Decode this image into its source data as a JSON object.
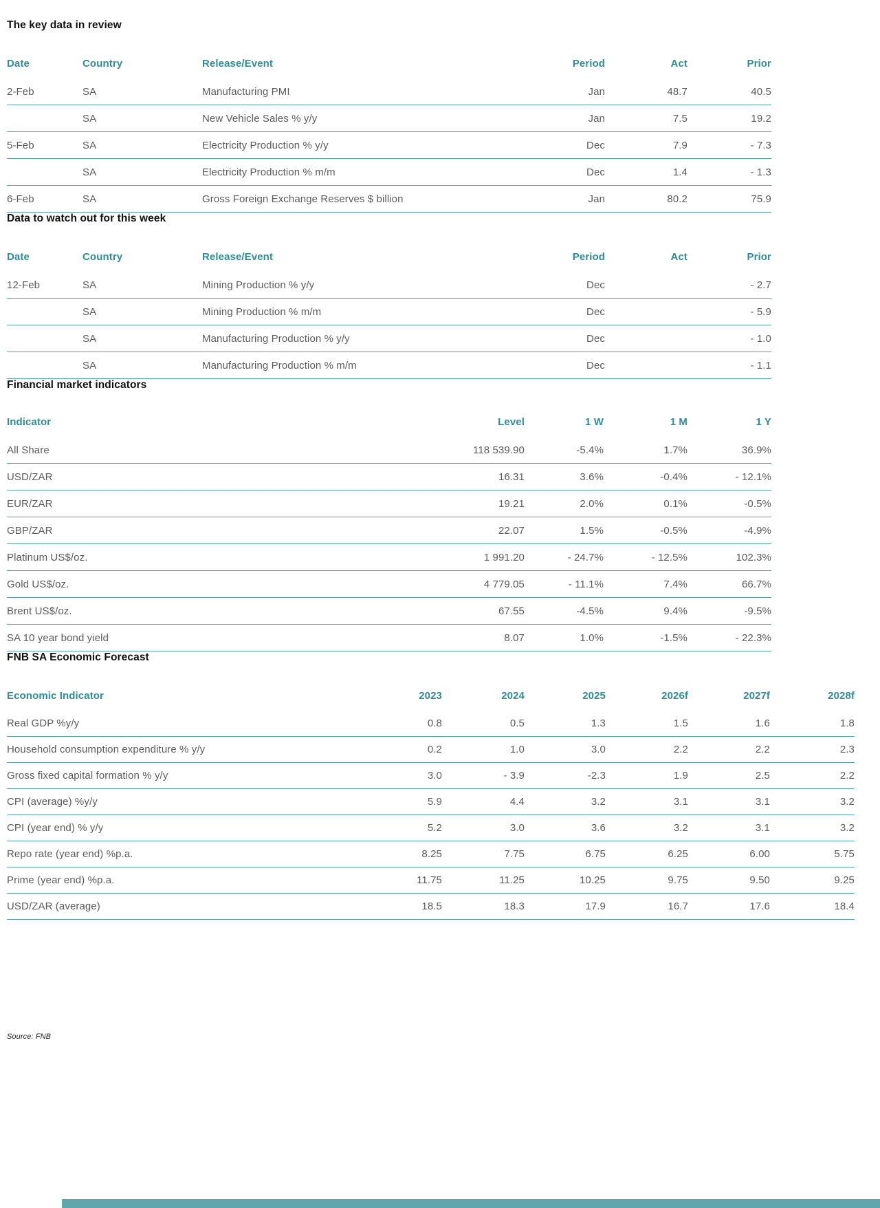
{
  "colors": {
    "accent_header_text": "#2e8d95",
    "row_separator": "#53a0a7",
    "body_text": "#5a5b5d",
    "title_text": "#111111",
    "bottom_bar": "#5fa7ad"
  },
  "footer": {
    "source_note": "Source: FNB"
  },
  "sections": [
    {
      "title": "The key data in review",
      "headers": [
        "Date",
        "Country",
        "Release/Event",
        "Period",
        "Act",
        "Prior"
      ],
      "rows": [
        [
          "2-Feb",
          "SA",
          "Manufacturing PMI",
          "Jan",
          "48.7",
          "40.5"
        ],
        [
          "",
          "SA",
          "New Vehicle Sales % y/y",
          "Jan",
          "7.5",
          "19.2"
        ],
        [
          "5-Feb",
          "SA",
          "Electricity Production % y/y",
          "Dec",
          "7.9",
          "- 7.3"
        ],
        [
          "",
          "SA",
          "Electricity Production % m/m",
          "Dec",
          "1.4",
          "- 1.3"
        ],
        [
          "6-Feb",
          "SA",
          "Gross Foreign Exchange Reserves $ billion",
          "Jan",
          "80.2",
          "75.9"
        ]
      ]
    },
    {
      "title": "Data to watch out for this week",
      "headers": [
        "Date",
        "Country",
        "Release/Event",
        "Period",
        "Act",
        "Prior"
      ],
      "rows": [
        [
          "12-Feb",
          "SA",
          "Mining Production % y/y",
          "Dec",
          "",
          "- 2.7"
        ],
        [
          "",
          "SA",
          "Mining Production % m/m",
          "Dec",
          "",
          "- 5.9"
        ],
        [
          "",
          "SA",
          "Manufacturing Production % y/y",
          "Dec",
          "",
          "- 1.0"
        ],
        [
          "",
          "SA",
          "Manufacturing Production % m/m",
          "Dec",
          "",
          "- 1.1"
        ]
      ]
    },
    {
      "title": "Financial market indicators",
      "headers": [
        "Indicator",
        "Level",
        "1 W",
        "1 M",
        "1 Y"
      ],
      "rows": [
        [
          "All Share",
          "118 539.90",
          "-5.4%",
          "1.7%",
          "36.9%"
        ],
        [
          "USD/ZAR",
          "16.31",
          "3.6%",
          "-0.4%",
          "- 12.1%"
        ],
        [
          "EUR/ZAR",
          "19.21",
          "2.0%",
          "0.1%",
          "-0.5%"
        ],
        [
          "GBP/ZAR",
          "22.07",
          "1.5%",
          "-0.5%",
          "-4.9%"
        ],
        [
          "Platinum US$/oz.",
          "1 991.20",
          "- 24.7%",
          "- 12.5%",
          "102.3%"
        ],
        [
          "Gold US$/oz.",
          "4 779.05",
          "- 11.1%",
          "7.4%",
          "66.7%"
        ],
        [
          "Brent US$/oz.",
          "67.55",
          "-4.5%",
          "9.4%",
          "-9.5%"
        ],
        [
          "SA 10 year bond yield",
          "8.07",
          "1.0%",
          "-1.5%",
          "- 22.3%"
        ]
      ]
    },
    {
      "title": "FNB SA Economic Forecast",
      "headers": [
        "Economic Indicator",
        "2023",
        "2024",
        "2025",
        "2026f",
        "2027f",
        "2028f"
      ],
      "rows": [
        [
          "Real GDP %y/y",
          "0.8",
          "0.5",
          "1.3",
          "1.5",
          "1.6",
          "1.8"
        ],
        [
          "Household consumption expenditure % y/y",
          "0.2",
          "1.0",
          "3.0",
          "2.2",
          "2.2",
          "2.3"
        ],
        [
          "Gross fixed capital formation % y/y",
          "3.0",
          "- 3.9",
          "-2.3",
          "1.9",
          "2.5",
          "2.2"
        ],
        [
          "CPI (average) %y/y",
          "5.9",
          "4.4",
          "3.2",
          "3.1",
          "3.1",
          "3.2"
        ],
        [
          "CPI (year end) % y/y",
          "5.2",
          "3.0",
          "3.6",
          "3.2",
          "3.1",
          "3.2"
        ],
        [
          "Repo rate (year end) %p.a.",
          "8.25",
          "7.75",
          "6.75",
          "6.25",
          "6.00",
          "5.75"
        ],
        [
          "Prime (year end) %p.a.",
          "11.75",
          "11.25",
          "10.25",
          "9.75",
          "9.50",
          "9.25"
        ],
        [
          "USD/ZAR (average)",
          "18.5",
          "18.3",
          "17.9",
          "16.7",
          "17.6",
          "18.4"
        ]
      ]
    }
  ]
}
